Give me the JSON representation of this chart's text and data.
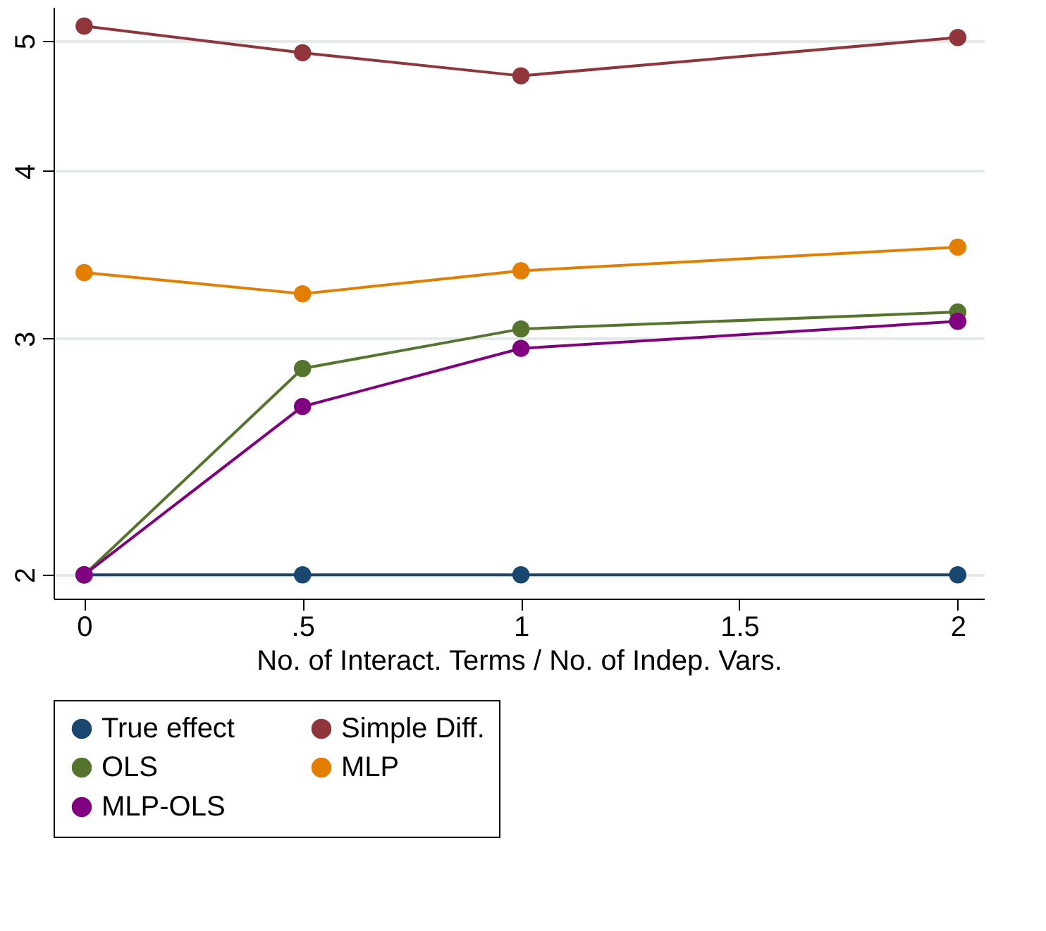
{
  "chart_data": {
    "type": "line",
    "xlabel": "No. of Interact. Terms / No. of Indep. Vars.",
    "xlim": [
      -0.07,
      2.06
    ],
    "xticks": [
      0,
      {
        "value": 0.5,
        "label": ".5"
      },
      1,
      1.5,
      2
    ],
    "ylim": [
      1.92,
      5.3
    ],
    "yticks": [
      2,
      3,
      4,
      5
    ],
    "log": "y",
    "grid": "y",
    "legend": "bottom",
    "marker": "circle",
    "series": [
      {
        "name": "True effect",
        "color": "#1a476f",
        "x": [
          0,
          0.5,
          1,
          2
        ],
        "values": [
          2,
          2,
          2,
          2
        ]
      },
      {
        "name": "Simple Diff.",
        "color": "#90353b",
        "x": [
          0,
          0.5,
          1,
          2
        ],
        "values": [
          5.13,
          4.9,
          4.71,
          5.03
        ]
      },
      {
        "name": "OLS",
        "color": "#55752f",
        "x": [
          0,
          0.5,
          1,
          2
        ],
        "values": [
          2,
          2.85,
          3.05,
          3.14
        ]
      },
      {
        "name": "MLP",
        "color": "#e37e00",
        "x": [
          0,
          0.5,
          1,
          2
        ],
        "values": [
          3.36,
          3.24,
          3.37,
          3.51
        ]
      },
      {
        "name": "MLP-OLS",
        "color": "#800080",
        "x": [
          0,
          0.5,
          1,
          2
        ],
        "values": [
          2,
          2.67,
          2.95,
          3.09
        ]
      }
    ]
  }
}
